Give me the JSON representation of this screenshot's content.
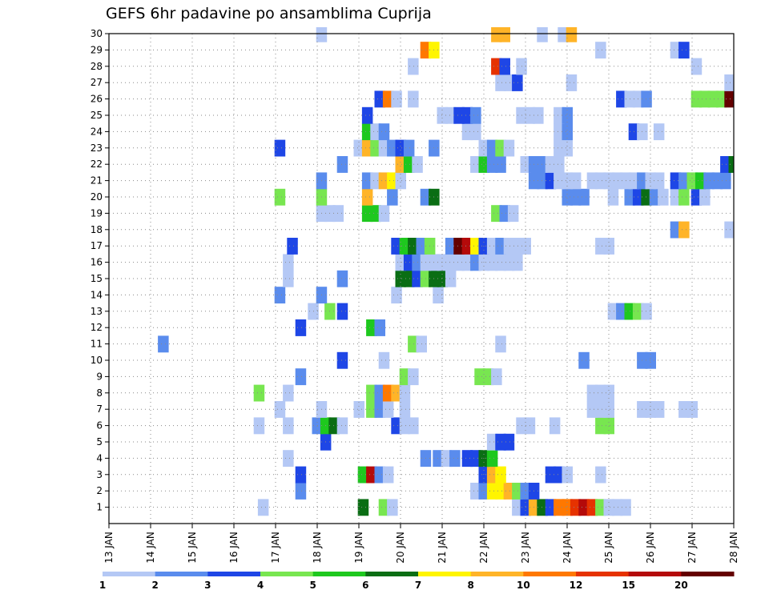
{
  "chart_data": {
    "type": "heatmap",
    "title": "GEFS 6hr padavine po ansamblima Cuprija",
    "x_tick_labels": [
      "13 JAN",
      "14 JAN",
      "15 JAN",
      "16 JAN",
      "17 JAN",
      "18 JAN",
      "19 JAN",
      "20 JAN",
      "21 JAN",
      "22 JAN",
      "23 JAN",
      "24 JAN",
      "25 JAN",
      "26 JAN",
      "27 JAN",
      "28 JAN"
    ],
    "x_range_days": [
      13,
      28
    ],
    "y_tick_labels": [
      "1",
      "2",
      "3",
      "4",
      "5",
      "6",
      "7",
      "8",
      "9",
      "10",
      "11",
      "12",
      "13",
      "14",
      "15",
      "16",
      "17",
      "18",
      "19",
      "20",
      "21",
      "22",
      "23",
      "24",
      "25",
      "26",
      "27",
      "28",
      "29",
      "30"
    ],
    "y_range": [
      0,
      30
    ],
    "grid": true,
    "colorbar": {
      "labels": [
        "1",
        "2",
        "3",
        "4",
        "5",
        "6",
        "7",
        "8",
        "10",
        "12",
        "15",
        "20"
      ],
      "colors": [
        "#b4c8f5",
        "#5a8ced",
        "#1e46e6",
        "#78e650",
        "#1ec81e",
        "#0a6e14",
        "#fff500",
        "#ffb428",
        "#ff7800",
        "#e63200",
        "#b40a0a",
        "#640000"
      ]
    },
    "cells": [
      [
        1,
        16.7,
        0
      ],
      [
        1,
        19.1,
        5
      ],
      [
        1,
        19.6,
        3
      ],
      [
        1,
        19.8,
        0
      ],
      [
        1,
        22.8,
        0
      ],
      [
        1,
        23.0,
        2
      ],
      [
        1,
        23.2,
        7
      ],
      [
        1,
        23.4,
        5
      ],
      [
        1,
        23.6,
        2
      ],
      [
        1,
        23.8,
        8
      ],
      [
        1,
        24.0,
        8
      ],
      [
        1,
        24.2,
        9
      ],
      [
        1,
        24.4,
        10
      ],
      [
        1,
        24.6,
        9
      ],
      [
        1,
        24.8,
        3
      ],
      [
        1,
        25.0,
        0
      ],
      [
        1,
        25.2,
        0
      ],
      [
        1,
        25.4,
        0
      ],
      [
        2,
        17.6,
        1
      ],
      [
        2,
        21.8,
        0
      ],
      [
        2,
        22.0,
        1
      ],
      [
        2,
        22.2,
        6
      ],
      [
        2,
        22.4,
        6
      ],
      [
        2,
        22.6,
        7
      ],
      [
        2,
        22.8,
        3
      ],
      [
        2,
        23.0,
        1
      ],
      [
        2,
        23.2,
        2
      ],
      [
        3,
        17.6,
        2
      ],
      [
        3,
        19.1,
        4
      ],
      [
        3,
        19.3,
        10
      ],
      [
        3,
        19.5,
        1
      ],
      [
        3,
        19.7,
        0
      ],
      [
        3,
        22.0,
        2
      ],
      [
        3,
        22.2,
        7
      ],
      [
        3,
        22.4,
        6
      ],
      [
        3,
        23.6,
        2
      ],
      [
        3,
        23.8,
        2
      ],
      [
        3,
        24.0,
        0
      ],
      [
        3,
        24.8,
        0
      ],
      [
        4,
        17.3,
        0
      ],
      [
        4,
        20.6,
        1
      ],
      [
        4,
        20.9,
        1
      ],
      [
        4,
        21.1,
        0
      ],
      [
        4,
        21.3,
        1
      ],
      [
        4,
        21.6,
        2
      ],
      [
        4,
        21.8,
        2
      ],
      [
        4,
        22.0,
        5
      ],
      [
        4,
        22.2,
        4
      ],
      [
        5,
        18.2,
        2
      ],
      [
        5,
        22.2,
        0
      ],
      [
        5,
        22.4,
        2
      ],
      [
        5,
        22.6,
        2
      ],
      [
        6,
        16.6,
        0
      ],
      [
        6,
        17.3,
        0
      ],
      [
        6,
        18.0,
        1
      ],
      [
        6,
        18.2,
        4
      ],
      [
        6,
        18.4,
        5
      ],
      [
        6,
        18.6,
        0
      ],
      [
        6,
        19.9,
        2
      ],
      [
        6,
        20.1,
        0
      ],
      [
        6,
        20.3,
        0
      ],
      [
        6,
        22.9,
        0
      ],
      [
        6,
        23.1,
        0
      ],
      [
        6,
        23.7,
        0
      ],
      [
        6,
        24.8,
        3
      ],
      [
        6,
        25.0,
        3
      ],
      [
        7,
        17.1,
        0
      ],
      [
        7,
        18.1,
        0
      ],
      [
        7,
        19.0,
        0
      ],
      [
        7,
        19.3,
        3
      ],
      [
        7,
        19.5,
        1
      ],
      [
        7,
        19.7,
        0
      ],
      [
        7,
        20.1,
        0
      ],
      [
        7,
        24.6,
        0
      ],
      [
        7,
        24.8,
        0
      ],
      [
        7,
        25.0,
        0
      ],
      [
        7,
        25.8,
        0
      ],
      [
        7,
        26.0,
        0
      ],
      [
        7,
        26.2,
        0
      ],
      [
        7,
        26.8,
        0
      ],
      [
        7,
        27.0,
        0
      ],
      [
        8,
        16.6,
        3
      ],
      [
        8,
        17.3,
        0
      ],
      [
        8,
        19.3,
        3
      ],
      [
        8,
        19.5,
        1
      ],
      [
        8,
        19.7,
        8
      ],
      [
        8,
        19.9,
        7
      ],
      [
        8,
        20.1,
        0
      ],
      [
        8,
        24.6,
        0
      ],
      [
        8,
        24.8,
        0
      ],
      [
        8,
        25.0,
        0
      ],
      [
        9,
        17.6,
        1
      ],
      [
        9,
        20.1,
        3
      ],
      [
        9,
        20.3,
        0
      ],
      [
        9,
        21.9,
        3
      ],
      [
        9,
        22.1,
        3
      ],
      [
        9,
        22.3,
        0
      ],
      [
        10,
        18.6,
        2
      ],
      [
        10,
        19.6,
        0
      ],
      [
        10,
        24.4,
        1
      ],
      [
        10,
        25.8,
        1
      ],
      [
        10,
        26.0,
        1
      ],
      [
        11,
        14.3,
        1
      ],
      [
        11,
        20.3,
        3
      ],
      [
        11,
        20.5,
        0
      ],
      [
        11,
        22.4,
        0
      ],
      [
        12,
        17.6,
        2
      ],
      [
        12,
        19.3,
        4
      ],
      [
        12,
        19.5,
        1
      ],
      [
        13,
        17.9,
        0
      ],
      [
        13,
        18.3,
        3
      ],
      [
        13,
        18.6,
        2
      ],
      [
        13,
        25.1,
        0
      ],
      [
        13,
        25.3,
        1
      ],
      [
        13,
        25.5,
        4
      ],
      [
        13,
        25.7,
        3
      ],
      [
        13,
        25.9,
        0
      ],
      [
        14,
        17.1,
        1
      ],
      [
        14,
        18.1,
        1
      ],
      [
        14,
        19.9,
        0
      ],
      [
        14,
        20.9,
        0
      ],
      [
        15,
        17.3,
        0
      ],
      [
        15,
        18.6,
        1
      ],
      [
        15,
        20.0,
        5
      ],
      [
        15,
        20.2,
        5
      ],
      [
        15,
        20.4,
        2
      ],
      [
        15,
        20.6,
        3
      ],
      [
        15,
        20.8,
        5
      ],
      [
        15,
        21.0,
        5
      ],
      [
        15,
        21.2,
        0
      ],
      [
        16,
        17.3,
        0
      ],
      [
        16,
        20.0,
        0
      ],
      [
        16,
        20.2,
        2
      ],
      [
        16,
        20.4,
        1
      ],
      [
        16,
        20.6,
        0
      ],
      [
        16,
        20.8,
        0
      ],
      [
        16,
        21.0,
        0
      ],
      [
        16,
        21.2,
        0
      ],
      [
        16,
        21.4,
        0
      ],
      [
        16,
        21.6,
        0
      ],
      [
        16,
        21.8,
        1
      ],
      [
        16,
        22.0,
        0
      ],
      [
        16,
        22.2,
        0
      ],
      [
        16,
        22.4,
        0
      ],
      [
        16,
        22.6,
        0
      ],
      [
        16,
        22.8,
        0
      ],
      [
        17,
        17.4,
        2
      ],
      [
        17,
        19.9,
        2
      ],
      [
        17,
        20.1,
        4
      ],
      [
        17,
        20.3,
        5
      ],
      [
        17,
        20.5,
        1
      ],
      [
        17,
        20.7,
        3
      ],
      [
        17,
        21.2,
        1
      ],
      [
        17,
        21.4,
        11
      ],
      [
        17,
        21.6,
        10
      ],
      [
        17,
        21.8,
        6
      ],
      [
        17,
        22.0,
        2
      ],
      [
        17,
        22.2,
        0
      ],
      [
        17,
        22.4,
        1
      ],
      [
        17,
        22.6,
        0
      ],
      [
        17,
        22.8,
        0
      ],
      [
        17,
        23.0,
        0
      ],
      [
        17,
        24.8,
        0
      ],
      [
        17,
        25.0,
        0
      ],
      [
        18,
        26.6,
        1
      ],
      [
        18,
        26.8,
        7
      ],
      [
        18,
        27.9,
        0
      ],
      [
        19,
        18.1,
        0
      ],
      [
        19,
        18.3,
        0
      ],
      [
        19,
        18.5,
        0
      ],
      [
        19,
        19.2,
        4
      ],
      [
        19,
        19.4,
        4
      ],
      [
        19,
        19.6,
        0
      ],
      [
        19,
        22.3,
        3
      ],
      [
        19,
        22.5,
        1
      ],
      [
        19,
        22.7,
        0
      ],
      [
        20,
        17.1,
        3
      ],
      [
        20,
        18.1,
        3
      ],
      [
        20,
        19.2,
        7
      ],
      [
        20,
        19.8,
        1
      ],
      [
        20,
        20.6,
        1
      ],
      [
        20,
        20.8,
        5
      ],
      [
        20,
        24.0,
        1
      ],
      [
        20,
        24.2,
        1
      ],
      [
        20,
        24.4,
        1
      ],
      [
        20,
        25.1,
        0
      ],
      [
        20,
        25.5,
        1
      ],
      [
        20,
        25.7,
        2
      ],
      [
        20,
        25.9,
        5
      ],
      [
        20,
        26.1,
        1
      ],
      [
        20,
        26.3,
        0
      ],
      [
        20,
        26.6,
        0
      ],
      [
        20,
        26.8,
        3
      ],
      [
        20,
        27.1,
        2
      ],
      [
        20,
        27.3,
        0
      ],
      [
        21,
        18.1,
        1
      ],
      [
        21,
        19.2,
        1
      ],
      [
        21,
        19.4,
        0
      ],
      [
        21,
        19.6,
        7
      ],
      [
        21,
        19.8,
        6
      ],
      [
        21,
        20.0,
        0
      ],
      [
        21,
        23.2,
        1
      ],
      [
        21,
        23.4,
        1
      ],
      [
        21,
        23.6,
        2
      ],
      [
        21,
        23.8,
        0
      ],
      [
        21,
        24.0,
        0
      ],
      [
        21,
        24.2,
        0
      ],
      [
        21,
        24.6,
        0
      ],
      [
        21,
        24.8,
        0
      ],
      [
        21,
        25.0,
        0
      ],
      [
        21,
        25.2,
        0
      ],
      [
        21,
        25.4,
        0
      ],
      [
        21,
        25.6,
        0
      ],
      [
        21,
        25.8,
        1
      ],
      [
        21,
        26.0,
        0
      ],
      [
        21,
        26.2,
        0
      ],
      [
        21,
        26.6,
        2
      ],
      [
        21,
        26.8,
        1
      ],
      [
        21,
        27.0,
        3
      ],
      [
        21,
        27.2,
        4
      ],
      [
        21,
        27.4,
        1
      ],
      [
        21,
        27.6,
        1
      ],
      [
        21,
        27.8,
        1
      ],
      [
        22,
        18.6,
        1
      ],
      [
        22,
        20.0,
        7
      ],
      [
        22,
        20.2,
        4
      ],
      [
        22,
        20.4,
        0
      ],
      [
        22,
        21.8,
        0
      ],
      [
        22,
        22.0,
        4
      ],
      [
        22,
        22.2,
        1
      ],
      [
        22,
        22.4,
        1
      ],
      [
        22,
        23.0,
        0
      ],
      [
        22,
        23.2,
        1
      ],
      [
        22,
        23.4,
        1
      ],
      [
        22,
        23.6,
        0
      ],
      [
        22,
        23.8,
        0
      ],
      [
        22,
        27.8,
        2
      ],
      [
        22,
        28.0,
        5
      ],
      [
        23,
        17.1,
        2
      ],
      [
        23,
        19.0,
        0
      ],
      [
        23,
        19.2,
        7
      ],
      [
        23,
        19.4,
        3
      ],
      [
        23,
        19.6,
        0
      ],
      [
        23,
        19.8,
        1
      ],
      [
        23,
        20.0,
        2
      ],
      [
        23,
        20.2,
        1
      ],
      [
        23,
        20.8,
        1
      ],
      [
        23,
        22.0,
        0
      ],
      [
        23,
        22.2,
        1
      ],
      [
        23,
        22.4,
        3
      ],
      [
        23,
        22.6,
        0
      ],
      [
        23,
        23.8,
        0
      ],
      [
        23,
        24.0,
        0
      ],
      [
        24,
        19.2,
        4
      ],
      [
        24,
        19.4,
        0
      ],
      [
        24,
        19.6,
        1
      ],
      [
        24,
        21.6,
        0
      ],
      [
        24,
        21.8,
        0
      ],
      [
        24,
        23.8,
        0
      ],
      [
        24,
        24.0,
        1
      ],
      [
        24,
        25.6,
        2
      ],
      [
        24,
        25.8,
        0
      ],
      [
        24,
        26.2,
        0
      ],
      [
        25,
        19.2,
        2
      ],
      [
        25,
        21.0,
        0
      ],
      [
        25,
        21.2,
        0
      ],
      [
        25,
        21.4,
        2
      ],
      [
        25,
        21.6,
        2
      ],
      [
        25,
        21.8,
        1
      ],
      [
        25,
        22.9,
        0
      ],
      [
        25,
        23.1,
        0
      ],
      [
        25,
        23.3,
        0
      ],
      [
        25,
        23.8,
        0
      ],
      [
        25,
        24.0,
        1
      ],
      [
        26,
        19.5,
        2
      ],
      [
        26,
        19.7,
        8
      ],
      [
        26,
        19.9,
        0
      ],
      [
        26,
        20.3,
        0
      ],
      [
        26,
        25.3,
        2
      ],
      [
        26,
        25.5,
        0
      ],
      [
        26,
        25.7,
        0
      ],
      [
        26,
        25.9,
        1
      ],
      [
        26,
        27.1,
        3
      ],
      [
        26,
        27.3,
        3
      ],
      [
        26,
        27.5,
        3
      ],
      [
        26,
        27.7,
        3
      ],
      [
        26,
        27.9,
        11
      ],
      [
        27,
        22.4,
        0
      ],
      [
        27,
        22.6,
        0
      ],
      [
        27,
        22.8,
        2
      ],
      [
        27,
        24.1,
        0
      ],
      [
        27,
        27.9,
        0
      ],
      [
        28,
        20.3,
        0
      ],
      [
        28,
        22.3,
        9
      ],
      [
        28,
        22.5,
        2
      ],
      [
        28,
        22.9,
        0
      ],
      [
        28,
        27.1,
        0
      ],
      [
        29,
        20.6,
        8
      ],
      [
        29,
        20.8,
        6
      ],
      [
        29,
        24.8,
        0
      ],
      [
        29,
        26.6,
        0
      ],
      [
        29,
        26.8,
        2
      ],
      [
        30,
        18.1,
        0
      ],
      [
        30,
        22.3,
        7
      ],
      [
        30,
        22.5,
        7
      ],
      [
        30,
        23.4,
        0
      ],
      [
        30,
        23.9,
        0
      ],
      [
        30,
        24.1,
        7
      ]
    ]
  }
}
